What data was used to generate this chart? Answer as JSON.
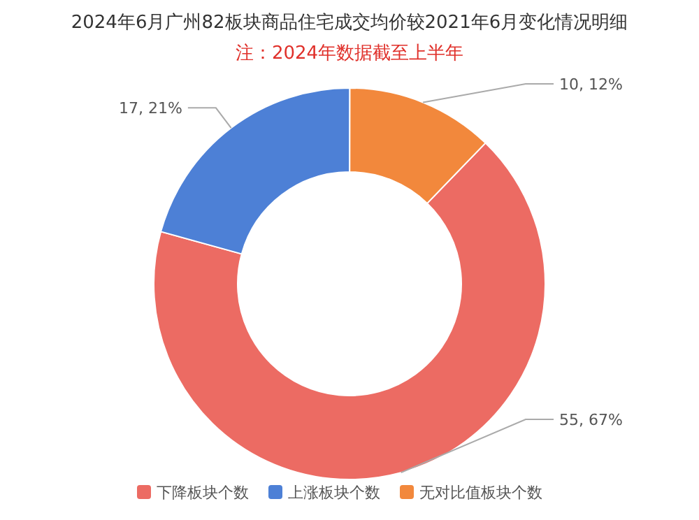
{
  "chart_data": {
    "type": "donut",
    "title": "2024年6月广州82板块商品住宅成交均价较2021年6月变化情况明细",
    "subtitle": "注：2024年数据截至上半年",
    "categories": [
      "下降板块个数",
      "上涨板块个数",
      "无对比值板块个数"
    ],
    "values": [
      55,
      17,
      10
    ],
    "value_labels": [
      "55, 67%",
      "17, 21%",
      "10, 12%"
    ],
    "colors": [
      "#ec6b63",
      "#4d80d6",
      "#f2883c"
    ],
    "legend": "bottom"
  }
}
